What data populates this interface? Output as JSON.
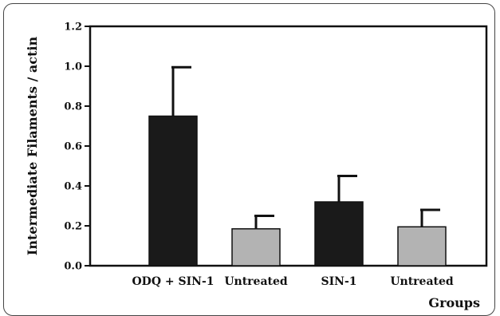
{
  "chart_data": {
    "type": "bar",
    "ylabel": "Intermediate Filaments / actin",
    "xlabel": "Groups",
    "categories": [
      "ODQ + SIN-1",
      "Untreated",
      "SIN-1",
      "Untreated"
    ],
    "values": [
      0.75,
      0.185,
      0.32,
      0.195
    ],
    "errors": [
      0.245,
      0.065,
      0.13,
      0.085
    ],
    "bar_colors": [
      "#1a1a1a",
      "#b3b3b3",
      "#1a1a1a",
      "#b3b3b3"
    ],
    "ylim": [
      0.0,
      1.2
    ],
    "yticks": [
      "0.0",
      "0.2",
      "0.4",
      "0.6",
      "0.8",
      "1.0",
      "1.2"
    ],
    "grid": false
  }
}
